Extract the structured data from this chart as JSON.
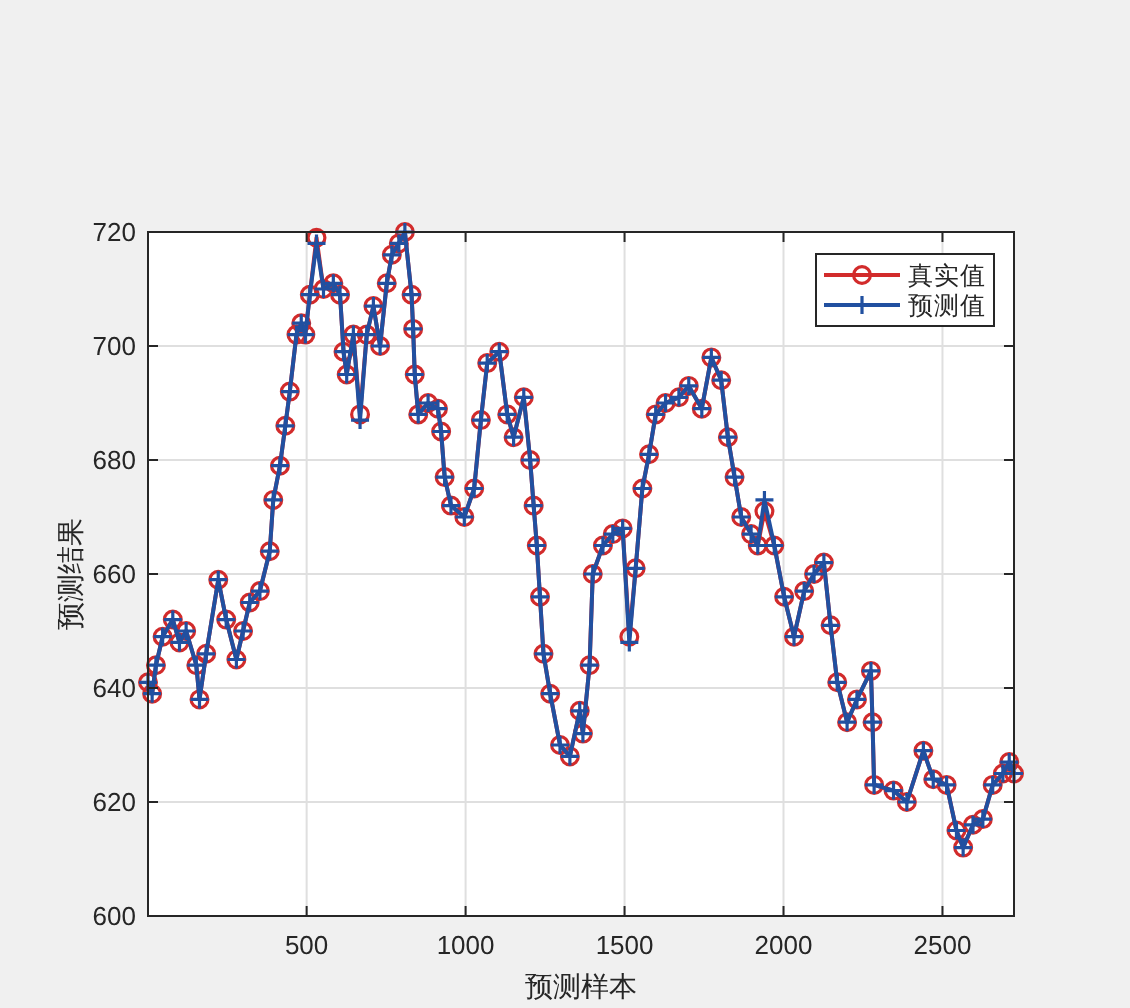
{
  "chart_data": {
    "type": "line",
    "xlabel": "预测样本",
    "ylabel": "预测结果",
    "x": [
      1,
      14,
      26,
      47,
      79,
      100,
      121,
      153,
      163,
      184,
      222,
      247,
      279,
      300,
      321,
      353,
      384,
      395,
      416,
      433,
      447,
      468,
      483,
      496,
      510,
      531,
      553,
      584,
      605,
      616,
      626,
      647,
      668,
      689,
      710,
      731,
      752,
      768,
      790,
      809,
      830,
      835,
      840,
      851,
      882,
      913,
      923,
      934,
      954,
      996,
      1027,
      1048,
      1068,
      1106,
      1131,
      1151,
      1183,
      1203,
      1214,
      1224,
      1234,
      1245,
      1266,
      1297,
      1328,
      1359,
      1369,
      1390,
      1400,
      1432,
      1463,
      1494,
      1515,
      1535,
      1556,
      1577,
      1598,
      1629,
      1671,
      1702,
      1743,
      1773,
      1804,
      1825,
      1846,
      1867,
      1898,
      1919,
      1940,
      1971,
      2002,
      2033,
      2065,
      2096,
      2127,
      2148,
      2169,
      2200,
      2231,
      2275,
      2280,
      2285,
      2346,
      2388,
      2440,
      2471,
      2513,
      2544,
      2565,
      2596,
      2627,
      2658,
      2690,
      2710,
      2725
    ],
    "series": [
      {
        "name": "真实值",
        "color": "#d22b2b",
        "marker": "circle",
        "values": [
          641,
          639,
          644,
          649,
          652,
          648,
          650,
          644,
          638,
          646,
          659,
          652,
          645,
          650,
          655,
          657,
          664,
          673,
          679,
          686,
          692,
          702,
          704,
          702,
          709,
          719,
          710,
          711,
          709,
          699,
          695,
          702,
          688,
          702,
          707,
          700,
          711,
          716,
          718,
          720,
          709,
          703,
          695,
          688,
          690,
          689,
          685,
          677,
          672,
          670,
          675,
          687,
          697,
          699,
          688,
          684,
          691,
          680,
          672,
          665,
          656,
          646,
          639,
          630,
          628,
          636,
          632,
          644,
          660,
          665,
          667,
          668,
          649,
          661,
          675,
          681,
          688,
          690,
          691,
          693,
          689,
          698,
          694,
          684,
          677,
          670,
          667,
          665,
          671,
          665,
          656,
          649,
          657,
          660,
          662,
          651,
          641,
          634,
          638,
          643,
          634,
          623,
          622,
          620,
          629,
          624,
          623,
          615,
          612,
          616,
          617,
          623,
          625,
          627,
          625
        ]
      },
      {
        "name": "预测值",
        "color": "#2150a0",
        "marker": "cross",
        "values": [
          641,
          639,
          644,
          649,
          652,
          648,
          650,
          644,
          638,
          646,
          659,
          652,
          645,
          650,
          655,
          657,
          664,
          673,
          679,
          686,
          692,
          702,
          704,
          702,
          709,
          718,
          710,
          711,
          709,
          699,
          695,
          702,
          687,
          702,
          707,
          700,
          711,
          716,
          718,
          720,
          709,
          703,
          695,
          688,
          690,
          689,
          685,
          677,
          672,
          670,
          675,
          687,
          697,
          699,
          688,
          684,
          691,
          680,
          672,
          665,
          656,
          646,
          639,
          630,
          628,
          636,
          632,
          644,
          660,
          665,
          667,
          668,
          648,
          661,
          675,
          681,
          688,
          690,
          691,
          693,
          689,
          698,
          694,
          684,
          677,
          670,
          667,
          665,
          673,
          665,
          656,
          649,
          657,
          660,
          662,
          651,
          641,
          634,
          638,
          643,
          634,
          623,
          622,
          620,
          629,
          624,
          623,
          615,
          612,
          616,
          617,
          623,
          625,
          627,
          625
        ]
      }
    ],
    "xlim": [
      1,
      2725
    ],
    "ylim": [
      600,
      720
    ],
    "xticks": [
      500,
      1000,
      1500,
      2000,
      2500
    ],
    "yticks": [
      600,
      620,
      640,
      660,
      680,
      700,
      720
    ],
    "grid": true,
    "legend": "top right",
    "line_style": "solid"
  }
}
